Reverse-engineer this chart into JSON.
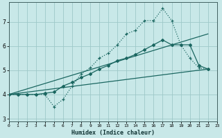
{
  "xlabel": "Humidex (Indice chaleur)",
  "bg_color": "#c8e8e8",
  "grid_color": "#9ec8c8",
  "line_color": "#1a6660",
  "xlim": [
    0,
    23
  ],
  "ylim": [
    2.9,
    7.8
  ],
  "xticks": [
    0,
    1,
    2,
    3,
    4,
    5,
    6,
    7,
    8,
    9,
    10,
    11,
    12,
    13,
    14,
    15,
    16,
    17,
    18,
    19,
    20,
    21,
    22,
    23
  ],
  "yticks": [
    3,
    4,
    5,
    6,
    7
  ],
  "line1_x": [
    0,
    1,
    2,
    3,
    4,
    5,
    6,
    7,
    8,
    9,
    10,
    11,
    12,
    13,
    14,
    15,
    16,
    17,
    18,
    19,
    20,
    21,
    22
  ],
  "line1_y": [
    4.0,
    4.0,
    4.0,
    4.0,
    4.0,
    3.5,
    3.8,
    4.35,
    4.85,
    5.1,
    5.5,
    5.7,
    6.05,
    6.5,
    6.65,
    7.05,
    7.05,
    7.55,
    7.05,
    6.05,
    5.5,
    5.1,
    5.05
  ],
  "line2_x": [
    0,
    1,
    2,
    3,
    4,
    5,
    6,
    7,
    8,
    9,
    10,
    11,
    12,
    13,
    14,
    15,
    16,
    17,
    18,
    19,
    20,
    21,
    22
  ],
  "line2_y": [
    4.0,
    4.0,
    4.0,
    4.0,
    4.05,
    4.1,
    4.35,
    4.5,
    4.7,
    4.85,
    5.05,
    5.2,
    5.4,
    5.5,
    5.65,
    5.85,
    6.05,
    6.25,
    6.05,
    6.05,
    6.05,
    5.2,
    5.05
  ],
  "line3_x": [
    0,
    22
  ],
  "line3_y": [
    4.0,
    5.05
  ],
  "line4_x": [
    0,
    22
  ],
  "line4_y": [
    4.0,
    6.5
  ]
}
